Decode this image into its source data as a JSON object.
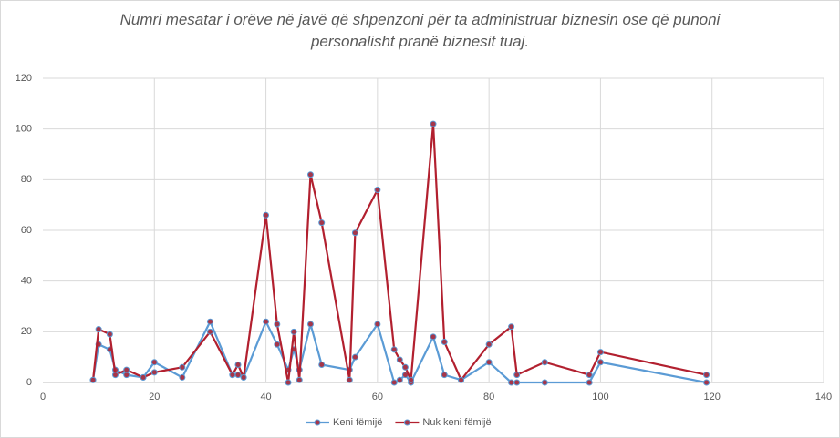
{
  "chart_data": {
    "type": "line",
    "title": "Numri mesatar i orëve në javë që shpenzoni për ta administruar biznesin ose që punoni personalisht pranë biznesit tuaj.",
    "xlim": [
      0,
      140
    ],
    "xticks": [
      0,
      20,
      40,
      60,
      80,
      100,
      120,
      140
    ],
    "ylim": [
      0,
      120
    ],
    "yticks": [
      0,
      20,
      40,
      60,
      80,
      100,
      120
    ],
    "grid": true,
    "legend": "bottom",
    "series": [
      {
        "name": "Keni fëmijë",
        "color": "#5b9bd5",
        "x": [
          9,
          10,
          12,
          13,
          15,
          18,
          20,
          25,
          30,
          34,
          35,
          36,
          40,
          42,
          44,
          45,
          46,
          48,
          50,
          55,
          56,
          60,
          63,
          64,
          65,
          66,
          70,
          72,
          75,
          80,
          84,
          85,
          90,
          98,
          100,
          119
        ],
        "values": [
          1,
          15,
          13,
          5,
          3,
          2,
          8,
          2,
          24,
          3,
          3,
          2,
          24,
          15,
          5,
          13,
          5,
          23,
          7,
          5,
          10,
          23,
          0,
          1,
          3,
          0,
          18,
          3,
          1,
          8,
          0,
          0,
          0,
          0,
          8,
          0
        ]
      },
      {
        "name": "Nuk keni fëmijë",
        "color": "#b2202f",
        "x": [
          9,
          10,
          12,
          13,
          15,
          18,
          20,
          25,
          30,
          34,
          35,
          36,
          40,
          42,
          44,
          45,
          46,
          48,
          50,
          55,
          56,
          60,
          63,
          64,
          65,
          66,
          70,
          72,
          75,
          80,
          84,
          85,
          90,
          98,
          100,
          119
        ],
        "values": [
          1,
          21,
          19,
          3,
          5,
          2,
          4,
          6,
          20,
          3,
          7,
          2,
          66,
          23,
          0,
          20,
          1,
          82,
          63,
          1,
          59,
          76,
          13,
          9,
          6,
          1,
          102,
          16,
          1,
          15,
          22,
          3,
          8,
          3,
          12,
          3
        ]
      }
    ]
  }
}
